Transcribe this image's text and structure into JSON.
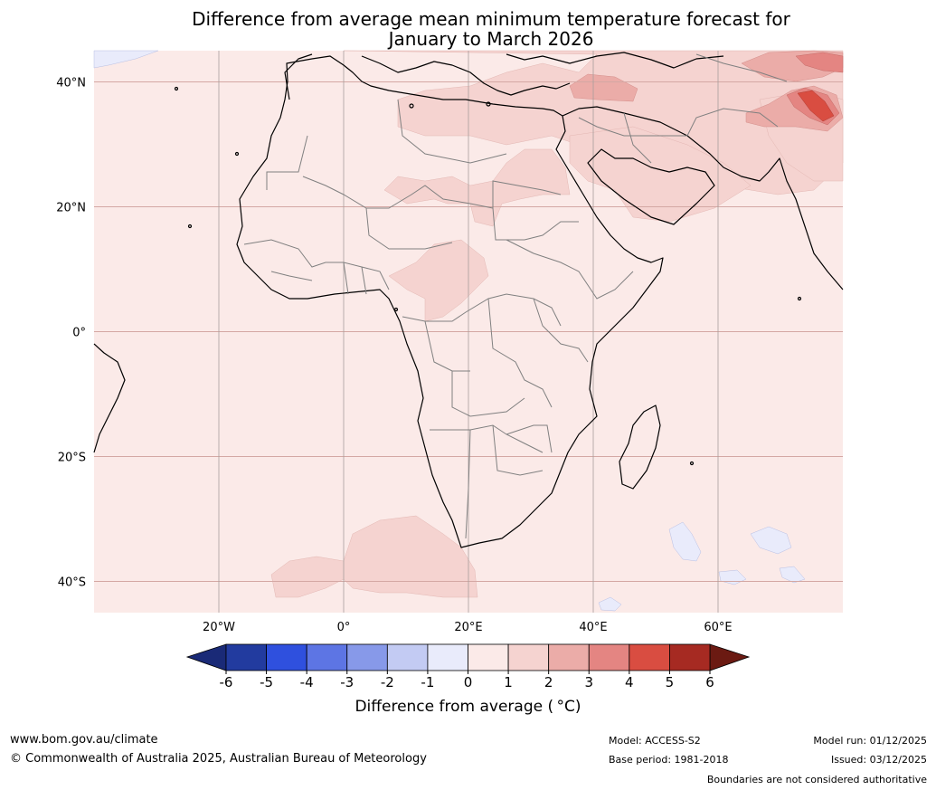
{
  "title": {
    "line1": "Difference from average mean minimum temperature forecast for",
    "line2": "January to March 2026"
  },
  "map": {
    "region": "Africa and Middle East",
    "lon_range": [
      -40,
      80
    ],
    "lat_range": [
      -45,
      45
    ],
    "lat_ticks": [
      {
        "value": 40,
        "label": "40°N"
      },
      {
        "value": 20,
        "label": "20°N"
      },
      {
        "value": 0,
        "label": "0°"
      },
      {
        "value": -20,
        "label": "20°S"
      },
      {
        "value": -40,
        "label": "40°S"
      }
    ],
    "lon_ticks": [
      {
        "value": -20,
        "label": "20°W"
      },
      {
        "value": 0,
        "label": "0°"
      },
      {
        "value": 20,
        "label": "20°E"
      },
      {
        "value": 40,
        "label": "40°E"
      },
      {
        "value": 60,
        "label": "60°E"
      }
    ],
    "background_anomaly_color": "#fbeae8"
  },
  "colorbar": {
    "ticks": [
      "-6",
      "-5",
      "-4",
      "-3",
      "-2",
      "-1",
      "0",
      "1",
      "2",
      "3",
      "4",
      "5",
      "6"
    ],
    "colors": [
      "#223b9f",
      "#2f50de",
      "#5d75e4",
      "#8799e9",
      "#c3cbf3",
      "#e9ebfb",
      "#fbeae8",
      "#f5d3d0",
      "#ebaca8",
      "#e48582",
      "#d94d41",
      "#a62a22"
    ],
    "low_extend_color": "#1a2a77",
    "high_extend_color": "#6b1a12",
    "label": "Difference from average ( °C)"
  },
  "footer": {
    "website": "www.bom.gov.au/climate",
    "copyright": "© Commonwealth of Australia 2025, Australian Bureau of Meteorology",
    "model": "Model: ACCESS-S2",
    "base_period": "Base period: 1981-2018",
    "model_run": "Model run: 01/12/2025",
    "issued": "Issued: 03/12/2025",
    "disclaimer": "Boundaries are not considered authoritative"
  }
}
